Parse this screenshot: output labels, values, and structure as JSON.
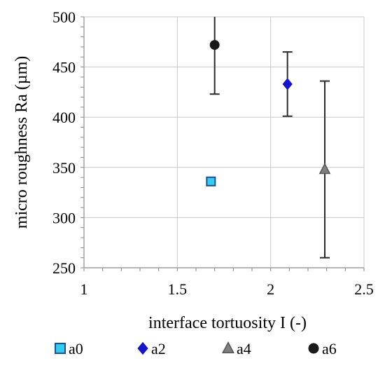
{
  "chart_data": {
    "type": "scatter",
    "xlabel": "interface tortuosity I (-)",
    "ylabel": "micro roughness Ra (µm)",
    "xlim": [
      1,
      2.5
    ],
    "ylim": [
      250,
      500
    ],
    "x_ticks": [
      1,
      1.5,
      2,
      2.5
    ],
    "x_tick_labels": [
      "1",
      "1.5",
      "2",
      "2.5"
    ],
    "y_ticks": [
      250,
      300,
      350,
      400,
      450,
      500
    ],
    "y_tick_labels": [
      "250",
      "300",
      "350",
      "400",
      "450",
      "500"
    ],
    "grid": true,
    "legend_position": "bottom",
    "series": [
      {
        "name": "a0",
        "marker": "square",
        "color": "#33ccee",
        "edge_color": "#1f4e9c",
        "x": 1.68,
        "y": 336,
        "err_low": null,
        "err_high": null
      },
      {
        "name": "a2",
        "marker": "diamond",
        "color": "#1414c8",
        "edge_color": "#1414c8",
        "x": 2.09,
        "y": 433,
        "err_low": 401,
        "err_high": 465
      },
      {
        "name": "a4",
        "marker": "triangle",
        "color": "#808080",
        "edge_color": "#555555",
        "x": 2.29,
        "y": 348,
        "err_low": 260,
        "err_high": 436
      },
      {
        "name": "a6",
        "marker": "circle",
        "color": "#1a1a1a",
        "edge_color": "#1a1a1a",
        "x": 1.7,
        "y": 472,
        "err_low": 423,
        "err_high": 521
      }
    ]
  }
}
